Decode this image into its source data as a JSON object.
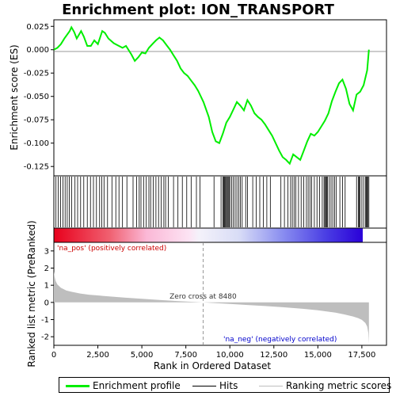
{
  "title": "Enrichment plot: ION_TRANSPORT",
  "colors": {
    "enrichment": "#00ee00",
    "hits": "#000000",
    "metric_fill": "#bebebe",
    "zero_line": "#808080",
    "pos_label": "#cc0000",
    "neg_label": "#0000cc"
  },
  "chart_data": [
    {
      "type": "line",
      "panel": "enrichment-profile",
      "ylabel": "Enrichment score (ES)",
      "ylim": [
        -0.135,
        0.032
      ],
      "yticks": [
        "0.025",
        "0.000",
        "-0.025",
        "-0.050",
        "-0.075",
        "-0.100",
        "-0.125"
      ],
      "ytick_values": [
        0.025,
        0.0,
        -0.025,
        -0.05,
        -0.075,
        -0.1,
        -0.125
      ],
      "xlim": [
        0,
        18900
      ],
      "grid": false,
      "x": [
        0,
        200,
        400,
        600,
        900,
        1000,
        1150,
        1300,
        1550,
        1700,
        1900,
        2100,
        2300,
        2500,
        2750,
        2900,
        3100,
        3400,
        3600,
        3900,
        4100,
        4400,
        4600,
        4800,
        5000,
        5200,
        5400,
        5600,
        5800,
        6000,
        6200,
        6400,
        6600,
        6800,
        7000,
        7200,
        7400,
        7600,
        7800,
        8000,
        8200,
        8500,
        8800,
        9000,
        9200,
        9400,
        9600,
        9800,
        10000,
        10200,
        10400,
        10600,
        10800,
        11000,
        11200,
        11400,
        11600,
        11800,
        12000,
        12200,
        12400,
        12600,
        12800,
        13000,
        13200,
        13400,
        13600,
        13800,
        14000,
        14200,
        14400,
        14600,
        14800,
        15000,
        15200,
        15400,
        15600,
        15800,
        16000,
        16200,
        16400,
        16600,
        16800,
        17000,
        17200,
        17400,
        17600,
        17800,
        17900
      ],
      "y": [
        0.0,
        0.002,
        0.006,
        0.012,
        0.02,
        0.024,
        0.019,
        0.012,
        0.02,
        0.014,
        0.004,
        0.004,
        0.01,
        0.006,
        0.02,
        0.018,
        0.012,
        0.007,
        0.005,
        0.002,
        0.004,
        -0.005,
        -0.012,
        -0.008,
        -0.003,
        -0.004,
        0.002,
        0.006,
        0.01,
        0.013,
        0.01,
        0.005,
        0.0,
        -0.006,
        -0.012,
        -0.02,
        -0.025,
        -0.028,
        -0.033,
        -0.038,
        -0.044,
        -0.056,
        -0.072,
        -0.088,
        -0.098,
        -0.1,
        -0.09,
        -0.078,
        -0.072,
        -0.064,
        -0.056,
        -0.06,
        -0.065,
        -0.054,
        -0.06,
        -0.068,
        -0.072,
        -0.075,
        -0.08,
        -0.086,
        -0.092,
        -0.1,
        -0.108,
        -0.115,
        -0.118,
        -0.122,
        -0.112,
        -0.115,
        -0.118,
        -0.108,
        -0.098,
        -0.09,
        -0.092,
        -0.088,
        -0.082,
        -0.076,
        -0.068,
        -0.055,
        -0.045,
        -0.036,
        -0.032,
        -0.042,
        -0.058,
        -0.065,
        -0.048,
        -0.045,
        -0.038,
        -0.022,
        0.0
      ]
    },
    {
      "type": "scatter",
      "panel": "hits",
      "xlim": [
        0,
        18900
      ],
      "hit_ranks": [
        120,
        250,
        380,
        520,
        640,
        760,
        880,
        1010,
        1200,
        1350,
        1520,
        1700,
        1900,
        2080,
        2250,
        2420,
        2600,
        2720,
        2850,
        3050,
        3300,
        3520,
        3700,
        3900,
        4150,
        4500,
        4700,
        4850,
        4950,
        5100,
        5250,
        5400,
        5500,
        5650,
        5800,
        5950,
        6100,
        6250,
        6350,
        6500,
        6800,
        7050,
        7300,
        7550,
        7800,
        8100,
        8300,
        9100,
        9500,
        9600,
        9650,
        9700,
        9750,
        9800,
        9850,
        9900,
        9950,
        10000,
        10100,
        10200,
        10300,
        10400,
        10500,
        10600,
        10700,
        10900,
        11000,
        11300,
        11500,
        11700,
        11900,
        12100,
        12300,
        12900,
        13100,
        13300,
        13450,
        13550,
        13650,
        13750,
        13900,
        14050,
        14200,
        14350,
        14450,
        14550,
        14650,
        14800,
        14950,
        15100,
        15250,
        15350,
        15400,
        15450,
        15500,
        15550,
        15650,
        15750,
        15850,
        15950,
        16050,
        16250,
        16400,
        16550,
        17200,
        17300,
        17350,
        17400,
        17500,
        17600,
        17700,
        17750,
        17800,
        17850,
        17900
      ]
    },
    {
      "type": "area",
      "panel": "ranked-list-metric",
      "xlabel": "Rank in Ordered Dataset",
      "ylabel": "Ranked list metric (PreRanked)",
      "xlim": [
        0,
        18900
      ],
      "ylim": [
        -2.5,
        3.5
      ],
      "yticks": [
        "3",
        "2",
        "1",
        "0",
        "-1",
        "-2"
      ],
      "ytick_values": [
        3,
        2,
        1,
        0,
        -1,
        -2
      ],
      "xticks": [
        "0",
        "2,500",
        "5,000",
        "7,500",
        "10,000",
        "12,500",
        "15,000",
        "17,500"
      ],
      "xtick_values": [
        0,
        2500,
        5000,
        7500,
        10000,
        12500,
        15000,
        17500
      ],
      "x": [
        0,
        40,
        100,
        200,
        400,
        700,
        1000,
        1500,
        2000,
        3000,
        4000,
        5000,
        6000,
        7000,
        8000,
        8480,
        9000,
        10000,
        11000,
        12000,
        13000,
        14000,
        15000,
        16000,
        16500,
        17000,
        17300,
        17500,
        17700,
        17800,
        17870,
        17900
      ],
      "values": [
        1.8,
        1.5,
        1.25,
        1.05,
        0.85,
        0.7,
        0.62,
        0.52,
        0.45,
        0.36,
        0.28,
        0.21,
        0.14,
        0.08,
        0.03,
        0.0,
        -0.03,
        -0.09,
        -0.15,
        -0.21,
        -0.28,
        -0.36,
        -0.46,
        -0.6,
        -0.7,
        -0.82,
        -0.92,
        -1.02,
        -1.2,
        -1.4,
        -1.8,
        -2.4
      ],
      "zero_cross": 8480,
      "annotations": {
        "zero_cross": "Zero cross at 8480",
        "pos": "'na_pos' (positively correlated)",
        "neg": "'na_neg' (negatively correlated)"
      }
    }
  ],
  "legend": {
    "items": [
      "Enrichment profile",
      "Hits",
      "Ranking metric scores"
    ]
  }
}
